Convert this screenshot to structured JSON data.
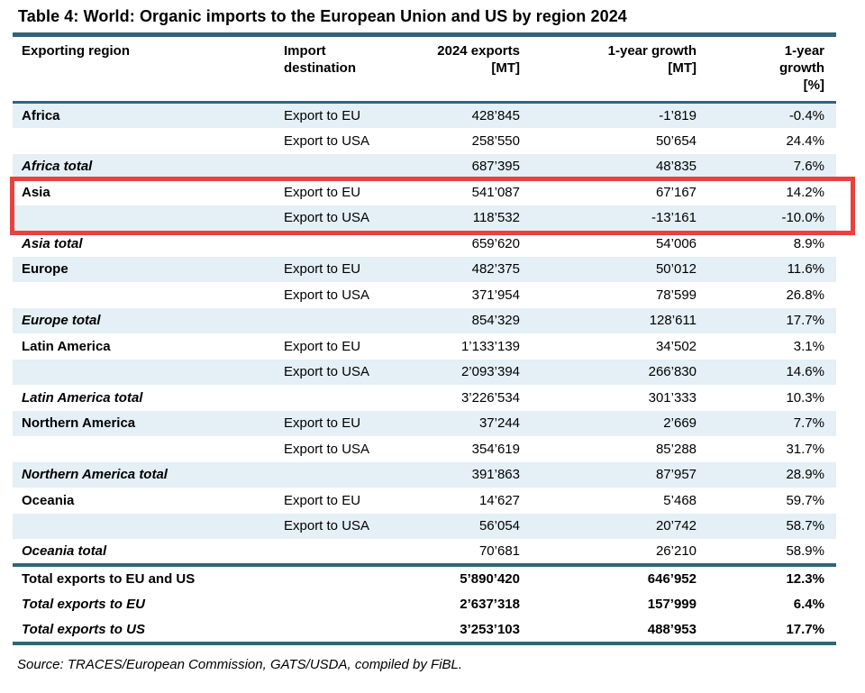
{
  "title": "Table 4: World: Organic imports to the European Union and US by region 2024",
  "source": "Source: TRACES/European Commission, GATS/USDA, compiled by FiBL.",
  "colors": {
    "rule_teal": "#326478",
    "row_shade": "#e4eff6",
    "highlight_red": "#e8413e"
  },
  "table": {
    "columns": {
      "region": "Exporting region",
      "destination": "Import\ndestination",
      "exports": "2024 exports\n[MT]",
      "growth_mt": "1-year growth\n[MT]",
      "growth_pct": "1-year\ngrowth\n[%]"
    },
    "rows": [
      {
        "region": "Africa",
        "destination": "Export to EU",
        "exports": "428’845",
        "growth_mt": "-1’819",
        "growth_pct": "-0.4%",
        "region_style": "region",
        "shaded": true,
        "highlighted": false
      },
      {
        "region": "",
        "destination": "Export to USA",
        "exports": "258’550",
        "growth_mt": "50’654",
        "growth_pct": "24.4%",
        "region_style": "",
        "shaded": false,
        "highlighted": false
      },
      {
        "region": "Africa total",
        "destination": "",
        "exports": "687’395",
        "growth_mt": "48’835",
        "growth_pct": "7.6%",
        "region_style": "total",
        "shaded": true,
        "highlighted": false
      },
      {
        "region": "Asia",
        "destination": "Export to EU",
        "exports": "541’087",
        "growth_mt": "67’167",
        "growth_pct": "14.2%",
        "region_style": "region",
        "shaded": false,
        "highlighted": true
      },
      {
        "region": "",
        "destination": "Export to USA",
        "exports": "118’532",
        "growth_mt": "-13’161",
        "growth_pct": "-10.0%",
        "region_style": "",
        "shaded": true,
        "highlighted": true
      },
      {
        "region": "Asia total",
        "destination": "",
        "exports": "659’620",
        "growth_mt": "54’006",
        "growth_pct": "8.9%",
        "region_style": "total",
        "shaded": false,
        "highlighted": false
      },
      {
        "region": "Europe",
        "destination": "Export to EU",
        "exports": "482’375",
        "growth_mt": "50’012",
        "growth_pct": "11.6%",
        "region_style": "region",
        "shaded": true,
        "highlighted": false
      },
      {
        "region": "",
        "destination": "Export to USA",
        "exports": "371’954",
        "growth_mt": "78’599",
        "growth_pct": "26.8%",
        "region_style": "",
        "shaded": false,
        "highlighted": false
      },
      {
        "region": "Europe total",
        "destination": "",
        "exports": "854’329",
        "growth_mt": "128’611",
        "growth_pct": "17.7%",
        "region_style": "total",
        "shaded": true,
        "highlighted": false
      },
      {
        "region": "Latin America",
        "destination": "Export to EU",
        "exports": "1’133’139",
        "growth_mt": "34’502",
        "growth_pct": "3.1%",
        "region_style": "region",
        "shaded": false,
        "highlighted": false
      },
      {
        "region": "",
        "destination": "Export to USA",
        "exports": "2’093’394",
        "growth_mt": "266’830",
        "growth_pct": "14.6%",
        "region_style": "",
        "shaded": true,
        "highlighted": false
      },
      {
        "region": "Latin America total",
        "destination": "",
        "exports": "3’226’534",
        "growth_mt": "301’333",
        "growth_pct": "10.3%",
        "region_style": "total",
        "shaded": false,
        "highlighted": false
      },
      {
        "region": "Northern America",
        "destination": "Export to EU",
        "exports": "37’244",
        "growth_mt": "2’669",
        "growth_pct": "7.7%",
        "region_style": "region",
        "shaded": true,
        "highlighted": false
      },
      {
        "region": "",
        "destination": "Export to USA",
        "exports": "354’619",
        "growth_mt": "85’288",
        "growth_pct": "31.7%",
        "region_style": "",
        "shaded": false,
        "highlighted": false
      },
      {
        "region": "Northern America total",
        "destination": "",
        "exports": "391’863",
        "growth_mt": "87’957",
        "growth_pct": "28.9%",
        "region_style": "total",
        "shaded": true,
        "highlighted": false
      },
      {
        "region": "Oceania",
        "destination": "Export to EU",
        "exports": "14’627",
        "growth_mt": "5’468",
        "growth_pct": "59.7%",
        "region_style": "region",
        "shaded": false,
        "highlighted": false
      },
      {
        "region": "",
        "destination": "Export to USA",
        "exports": "56’054",
        "growth_mt": "20’742",
        "growth_pct": "58.7%",
        "region_style": "",
        "shaded": true,
        "highlighted": false
      },
      {
        "region": "Oceania total",
        "destination": "",
        "exports": "70’681",
        "growth_mt": "26’210",
        "growth_pct": "58.9%",
        "region_style": "total",
        "shaded": false,
        "highlighted": false
      }
    ],
    "grand_totals": [
      {
        "label": "Total exports to EU and US",
        "exports": "5’890’420",
        "growth_mt": "646’952",
        "growth_pct": "12.3%",
        "label_style": "bold"
      },
      {
        "label": "Total exports to EU",
        "exports": "2’637’318",
        "growth_mt": "157’999",
        "growth_pct": "6.4%",
        "label_style": "bold-italic"
      },
      {
        "label": "Total exports to US",
        "exports": "3’253’103",
        "growth_mt": "488’953",
        "growth_pct": "17.7%",
        "label_style": "bold-italic"
      }
    ]
  }
}
